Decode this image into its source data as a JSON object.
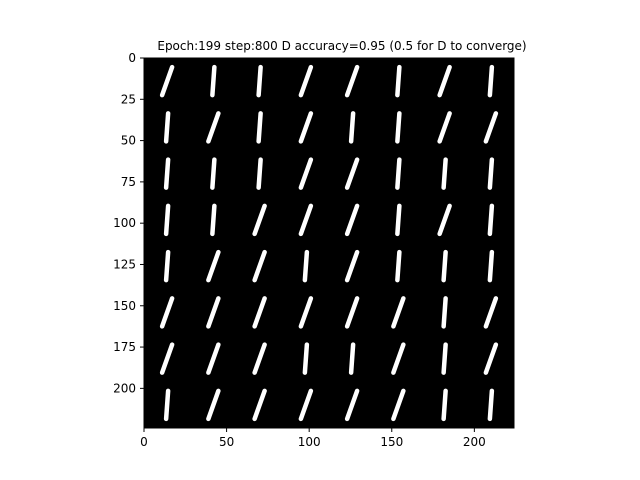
{
  "chart_data": {
    "type": "image-grid",
    "title": "Epoch:199 step:800 D accuracy=0.95 (0.5 for D to converge)",
    "xlabel": "",
    "ylabel": "",
    "xlim": [
      0,
      224
    ],
    "ylim": [
      224,
      0
    ],
    "x_ticks": [
      0,
      50,
      100,
      150,
      200
    ],
    "y_ticks": [
      0,
      25,
      50,
      75,
      100,
      125,
      150,
      175,
      200
    ],
    "grid": false,
    "background_color": "#000000",
    "stroke_color": "#ffffff",
    "rows": 8,
    "cols": 8,
    "cell_size": 28,
    "glyphs": [
      [
        "/",
        "|",
        "|",
        "/",
        "/",
        "|",
        "/",
        "|"
      ],
      [
        "|",
        "/",
        "|",
        "/",
        "|",
        "|",
        "/",
        "/"
      ],
      [
        "|",
        "|",
        "|",
        "/",
        "/",
        "|",
        "|",
        "|"
      ],
      [
        "|",
        "|",
        "/",
        "/",
        "/",
        "|",
        "/",
        "|"
      ],
      [
        "|",
        "/",
        "/",
        "|",
        "/",
        "|",
        "|",
        "|"
      ],
      [
        "/",
        "/",
        "/",
        "/",
        "/",
        "/",
        "|",
        "/"
      ],
      [
        "/",
        "/",
        "/",
        "|",
        "|",
        "/",
        "|",
        "/"
      ],
      [
        "|",
        "/",
        "/",
        "/",
        "/",
        "/",
        "|",
        "|"
      ]
    ]
  }
}
